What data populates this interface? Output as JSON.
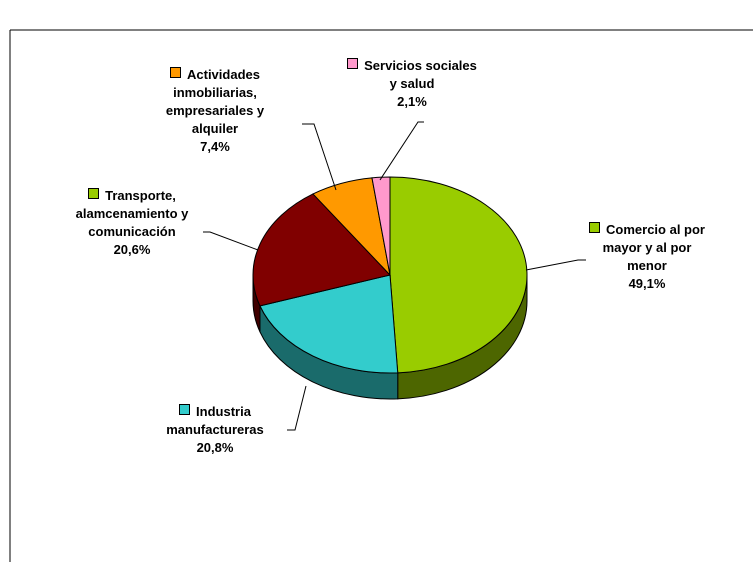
{
  "chart_data": {
    "type": "pie",
    "categories": [
      "Comercio al por mayor y al por menor",
      "Industria manufactureras",
      "Transporte, alamcenamiento y comunicación",
      "Actividades inmobiliarias, empresariales y alquiler",
      "Servicios sociales y salud"
    ],
    "values": [
      49.1,
      20.8,
      20.6,
      7.4,
      2.1
    ],
    "value_labels": [
      "49,1%",
      "20,8%",
      "20,6%",
      "7,4%",
      "2,1%"
    ],
    "colors": [
      "#99cc00",
      "#33cccc",
      "#800000",
      "#ff9900",
      "#ff99cc"
    ],
    "side_colors": [
      "#4d6600",
      "#1a6b6b",
      "#400000",
      "#804d00",
      "#804d66"
    ]
  }
}
